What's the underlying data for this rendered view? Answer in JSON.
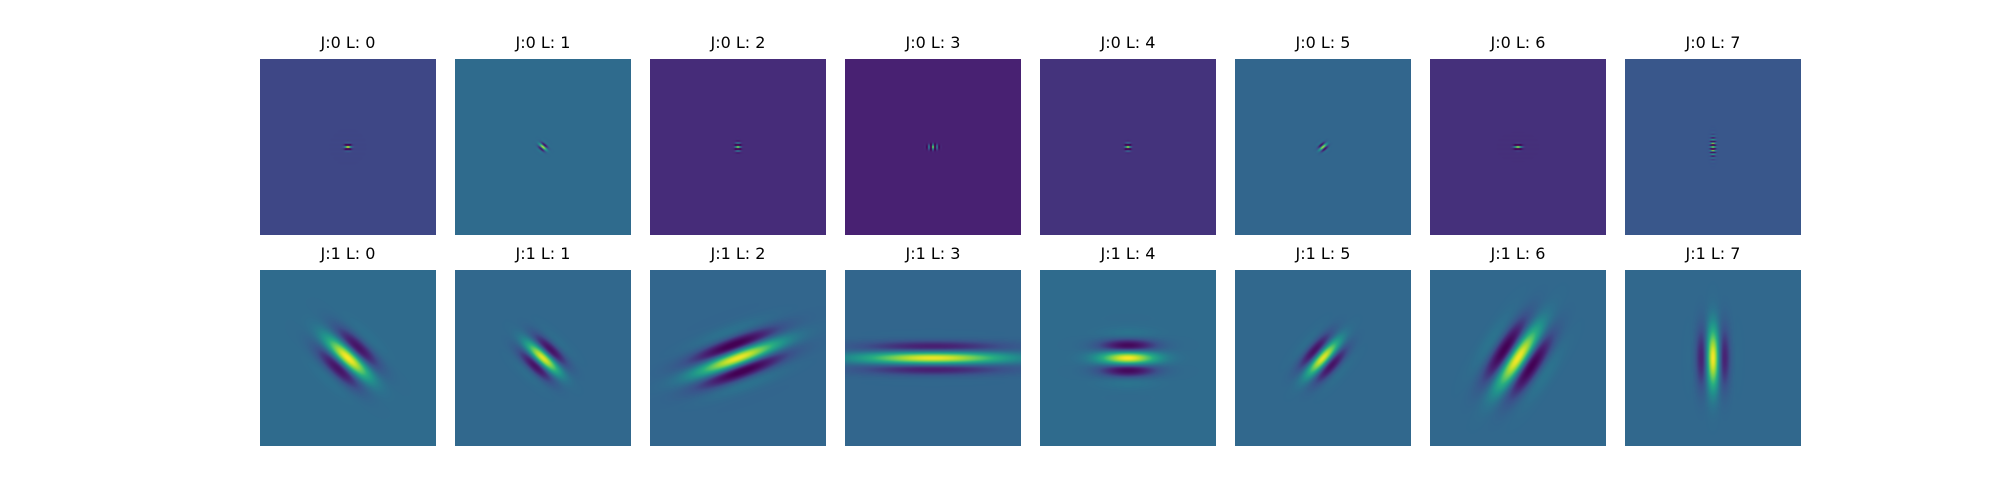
{
  "chart_data": {
    "type": "heatmap",
    "rows": 2,
    "cols": 8,
    "colormap": "viridis",
    "panels": [
      {
        "title": "J:0 L: 0",
        "J": 0,
        "L": 0,
        "bg_level": 0.22
      },
      {
        "title": "J:0 L: 1",
        "J": 0,
        "L": 1,
        "bg_level": 0.35
      },
      {
        "title": "J:0 L: 2",
        "J": 0,
        "L": 2,
        "bg_level": 0.15
      },
      {
        "title": "J:0 L: 3",
        "J": 0,
        "L": 3,
        "bg_level": 0.12
      },
      {
        "title": "J:0 L: 4",
        "J": 0,
        "L": 4,
        "bg_level": 0.17
      },
      {
        "title": "J:0 L: 5",
        "J": 0,
        "L": 5,
        "bg_level": 0.33
      },
      {
        "title": "J:0 L: 6",
        "J": 0,
        "L": 6,
        "bg_level": 0.16
      },
      {
        "title": "J:0 L: 7",
        "J": 0,
        "L": 7,
        "bg_level": 0.27
      },
      {
        "title": "J:1 L: 0",
        "J": 1,
        "L": 0,
        "bg_level": 0.35
      },
      {
        "title": "J:1 L: 1",
        "J": 1,
        "L": 1,
        "bg_level": 0.34
      },
      {
        "title": "J:1 L: 2",
        "J": 1,
        "L": 2,
        "bg_level": 0.33
      },
      {
        "title": "J:1 L: 3",
        "J": 1,
        "L": 3,
        "bg_level": 0.33
      },
      {
        "title": "J:1 L: 4",
        "J": 1,
        "L": 4,
        "bg_level": 0.35
      },
      {
        "title": "J:1 L: 5",
        "J": 1,
        "L": 5,
        "bg_level": 0.34
      },
      {
        "title": "J:1 L: 6",
        "J": 1,
        "L": 6,
        "bg_level": 0.34
      },
      {
        "title": "J:1 L: 7",
        "J": 1,
        "L": 7,
        "bg_level": 0.34
      }
    ]
  }
}
